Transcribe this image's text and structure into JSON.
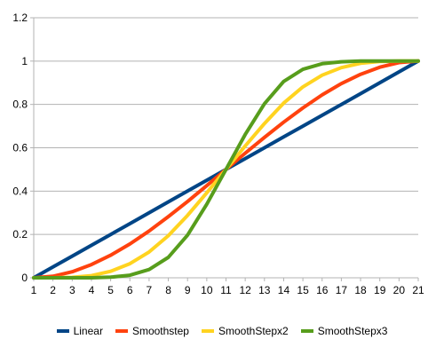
{
  "chart_data": {
    "type": "line",
    "x": [
      1,
      2,
      3,
      4,
      5,
      6,
      7,
      8,
      9,
      10,
      11,
      12,
      13,
      14,
      15,
      16,
      17,
      18,
      19,
      20,
      21
    ],
    "xlim": [
      1,
      21
    ],
    "ylim": [
      0,
      1.2
    ],
    "yticks": [
      0,
      0.2,
      0.4,
      0.6,
      0.8,
      1,
      1.2
    ],
    "ytick_labels": [
      "0",
      "0.2",
      "0.4",
      "0.6",
      "0.8",
      "1",
      "1.2"
    ],
    "grid": "horizontal",
    "legend_position": "bottom",
    "series": [
      {
        "name": "Linear",
        "color": "#004586",
        "values": [
          0,
          0.05,
          0.1,
          0.15,
          0.2,
          0.25,
          0.3,
          0.35,
          0.4,
          0.45,
          0.5,
          0.55,
          0.6,
          0.65,
          0.7,
          0.75,
          0.8,
          0.85,
          0.9,
          0.95,
          1
        ]
      },
      {
        "name": "Smoothstep",
        "color": "#ff420e",
        "values": [
          0,
          0.007,
          0.028,
          0.061,
          0.104,
          0.156,
          0.216,
          0.282,
          0.352,
          0.425,
          0.5,
          0.575,
          0.648,
          0.718,
          0.784,
          0.844,
          0.896,
          0.939,
          0.972,
          0.993,
          1
        ]
      },
      {
        "name": "SmoothStepx2",
        "color": "#ffd320",
        "values": [
          0,
          0,
          0.002,
          0.01,
          0.03,
          0.065,
          0.119,
          0.194,
          0.288,
          0.392,
          0.5,
          0.608,
          0.712,
          0.806,
          0.881,
          0.935,
          0.97,
          0.99,
          0.998,
          1,
          1
        ]
      },
      {
        "name": "SmoothStepx3",
        "color": "#579d1c",
        "values": [
          0,
          0,
          0,
          0,
          0.003,
          0.012,
          0.038,
          0.094,
          0.197,
          0.339,
          0.5,
          0.661,
          0.803,
          0.906,
          0.962,
          0.988,
          0.997,
          1,
          1,
          1,
          1
        ]
      }
    ]
  }
}
